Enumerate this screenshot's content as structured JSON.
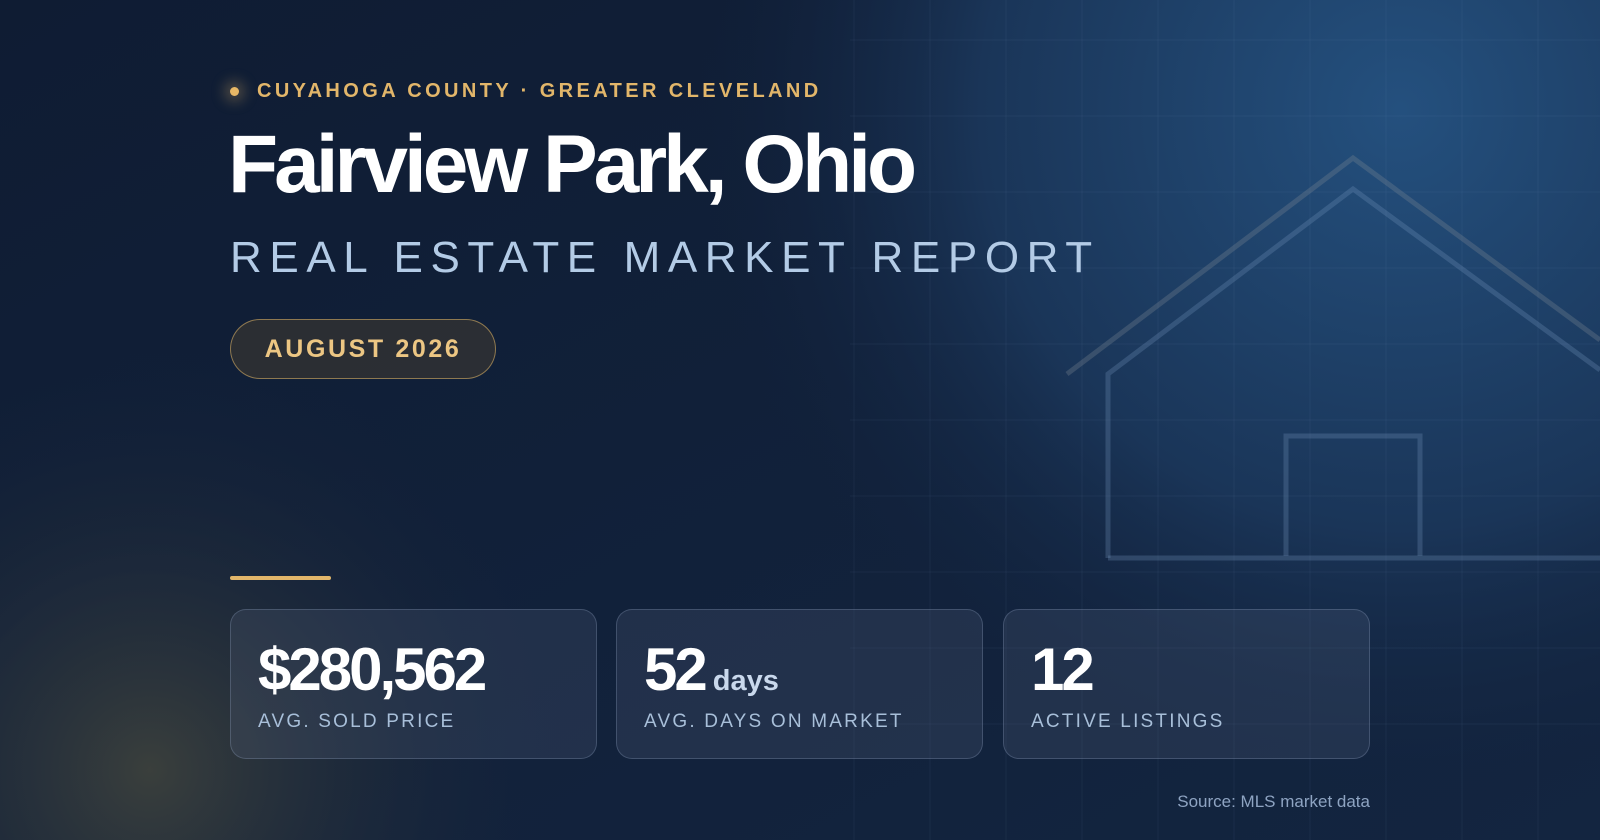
{
  "header": {
    "eyebrow": "CUYAHOGA COUNTY · GREATER CLEVELAND",
    "title": "Fairview Park, Ohio",
    "subtitle": "REAL ESTATE MARKET REPORT",
    "badge": "AUGUST 2026"
  },
  "stats": [
    {
      "value": "$280,562",
      "label": "AVG. SOLD PRICE"
    },
    {
      "value": "52",
      "unit": "days",
      "label": "AVG. DAYS ON MARKET"
    },
    {
      "value": "12",
      "label": "ACTIVE LISTINGS"
    }
  ],
  "source": "Source: MLS market data"
}
